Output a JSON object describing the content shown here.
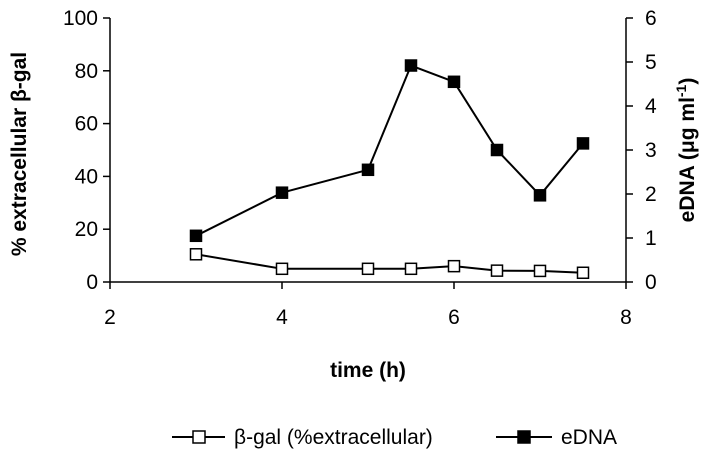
{
  "chart_data": {
    "type": "line",
    "xlabel": "time (h)",
    "ylabel_left": "% extracellular β-gal",
    "ylabel_right_main": "eDNA (μg ml",
    "ylabel_right_sup": "-1",
    "ylabel_right_close": ")",
    "xlim": [
      2,
      8
    ],
    "ylim_left": [
      0,
      100
    ],
    "ylim_right": [
      0,
      6
    ],
    "xticks": [
      2,
      4,
      6,
      8
    ],
    "yticks_left": [
      0,
      20,
      40,
      60,
      80,
      100
    ],
    "yticks_right": [
      0,
      1,
      2,
      3,
      4,
      5,
      6
    ],
    "grid": false,
    "legend_position": "bottom",
    "series": [
      {
        "name": "β-gal (%extracellular)",
        "axis": "left",
        "marker": "open-square",
        "x": [
          3,
          4,
          5,
          5.5,
          6,
          6.5,
          7,
          7.5
        ],
        "values": [
          10.5,
          5,
          5,
          5,
          6,
          4.3,
          4.2,
          3.5
        ]
      },
      {
        "name": "eDNA",
        "axis": "right",
        "marker": "filled-square",
        "x": [
          3,
          4,
          5,
          5.5,
          6,
          6.5,
          7,
          7.5
        ],
        "values": [
          1.05,
          2.03,
          2.55,
          4.92,
          4.55,
          3.0,
          1.97,
          3.15
        ]
      }
    ]
  }
}
